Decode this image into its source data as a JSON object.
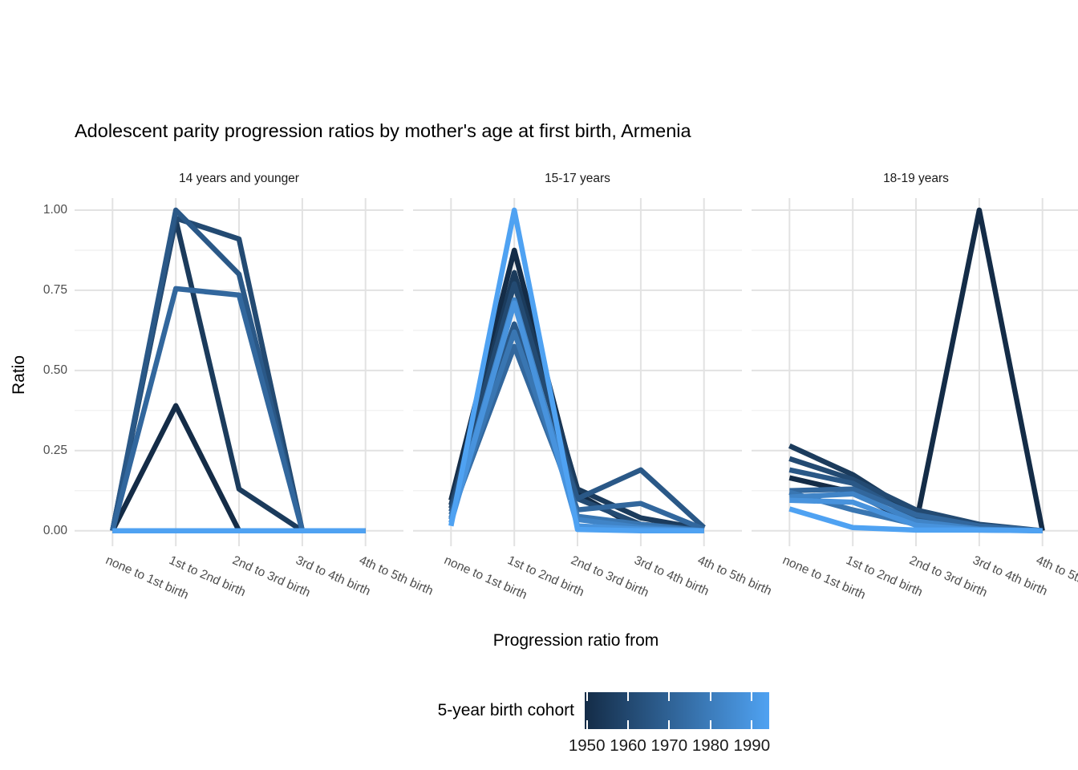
{
  "title": "Adolescent parity progression ratios by mother's age at first birth,  Armenia",
  "y_axis": {
    "label": "Ratio"
  },
  "x_axis": {
    "label": "Progression ratio from"
  },
  "legend": {
    "title": "5-year birth cohort",
    "tick_labels": [
      "1950",
      "1960",
      "1970",
      "1980",
      "1990"
    ],
    "gradient": [
      "#142c47",
      "#4fa2f2"
    ]
  },
  "chart_data": {
    "type": "line",
    "title": "Adolescent parity progression ratios by mother's age at first birth,  Armenia",
    "xlabel": "Progression ratio from",
    "ylabel": "Ratio",
    "ylim": [
      0,
      1
    ],
    "yticks": [
      0,
      0.25,
      0.5,
      0.75,
      1
    ],
    "ytick_labels": [
      "0.00",
      "0.25",
      "0.50",
      "0.75",
      "1.00"
    ],
    "minor_yticks": [
      0.125,
      0.375,
      0.625,
      0.875
    ],
    "grid": true,
    "legend_position": "bottom",
    "categories": [
      "none to 1st birth",
      "1st to 2nd birth",
      "2nd to 3rd birth",
      "3rd to 4th birth",
      "4th to 5th birth"
    ],
    "cohorts": [
      "1950",
      "1955",
      "1960",
      "1965",
      "1970",
      "1975",
      "1980",
      "1985",
      "1990"
    ],
    "cohort_colors": [
      "#142c47",
      "#1b3b5c",
      "#234a72",
      "#2a5887",
      "#32679d",
      "#3976b2",
      "#4084c7",
      "#4893dd",
      "#4fa2f2"
    ],
    "facets": [
      {
        "label": "14 years and younger",
        "series": [
          {
            "cohort": "1950",
            "values": [
              0,
              0.39,
              0,
              0,
              0
            ]
          },
          {
            "cohort": "1955",
            "values": [
              0,
              0.97,
              0.13,
              0,
              0
            ]
          },
          {
            "cohort": "1960",
            "values": [
              0,
              0.975,
              0.91,
              0,
              0
            ]
          },
          {
            "cohort": "1965",
            "values": [
              0,
              1.0,
              0.8,
              0,
              0
            ]
          },
          {
            "cohort": "1970",
            "values": [
              0,
              0.755,
              0.735,
              0,
              0
            ]
          },
          {
            "cohort": "1975",
            "values": [
              0,
              0,
              0,
              0,
              0
            ]
          },
          {
            "cohort": "1980",
            "values": [
              0,
              0,
              0,
              0,
              0
            ]
          },
          {
            "cohort": "1985",
            "values": [
              0,
              0,
              0,
              0,
              0
            ]
          },
          {
            "cohort": "1990",
            "values": [
              0,
              0,
              0,
              0,
              0
            ]
          }
        ]
      },
      {
        "label": "15-17 years",
        "series": [
          {
            "cohort": "1950",
            "values": [
              0.095,
              0.875,
              0.115,
              0.005,
              0
            ]
          },
          {
            "cohort": "1955",
            "values": [
              0.08,
              0.805,
              0.13,
              0.04,
              0.005
            ]
          },
          {
            "cohort": "1960",
            "values": [
              0.07,
              0.77,
              0.1,
              0.02,
              0.005
            ]
          },
          {
            "cohort": "1965",
            "values": [
              0.06,
              0.645,
              0.1,
              0.19,
              0.01
            ]
          },
          {
            "cohort": "1970",
            "values": [
              0.05,
              0.575,
              0.065,
              0.085,
              0.005
            ]
          },
          {
            "cohort": "1975",
            "values": [
              0.04,
              0.62,
              0.045,
              0.02,
              0
            ]
          },
          {
            "cohort": "1980",
            "values": [
              0.035,
              0.72,
              0.035,
              0.01,
              0
            ]
          },
          {
            "cohort": "1985",
            "values": [
              0.025,
              0.71,
              0.015,
              0.005,
              0
            ]
          },
          {
            "cohort": "1990",
            "values": [
              0.015,
              1.0,
              0.004,
              0,
              0
            ]
          }
        ]
      },
      {
        "label": "18-19 years",
        "series": [
          {
            "cohort": "1950",
            "values": [
              0.165,
              0.12,
              0.02,
              1.0,
              0
            ]
          },
          {
            "cohort": "1955",
            "values": [
              0.265,
              0.175,
              0.05,
              0.012,
              0
            ]
          },
          {
            "cohort": "1960",
            "values": [
              0.225,
              0.16,
              0.065,
              0.02,
              0
            ]
          },
          {
            "cohort": "1965",
            "values": [
              0.19,
              0.148,
              0.04,
              0.012,
              0
            ]
          },
          {
            "cohort": "1970",
            "values": [
              0.125,
              0.13,
              0.05,
              0.015,
              0
            ]
          },
          {
            "cohort": "1975",
            "values": [
              0.12,
              0.065,
              0.02,
              0.005,
              0
            ]
          },
          {
            "cohort": "1980",
            "values": [
              0.105,
              0.115,
              0.03,
              0.005,
              0
            ]
          },
          {
            "cohort": "1985",
            "values": [
              0.095,
              0.089,
              0.017,
              0.002,
              0
            ]
          },
          {
            "cohort": "1990",
            "values": [
              0.068,
              0.01,
              0.002,
              0.002,
              0
            ]
          }
        ]
      }
    ]
  }
}
